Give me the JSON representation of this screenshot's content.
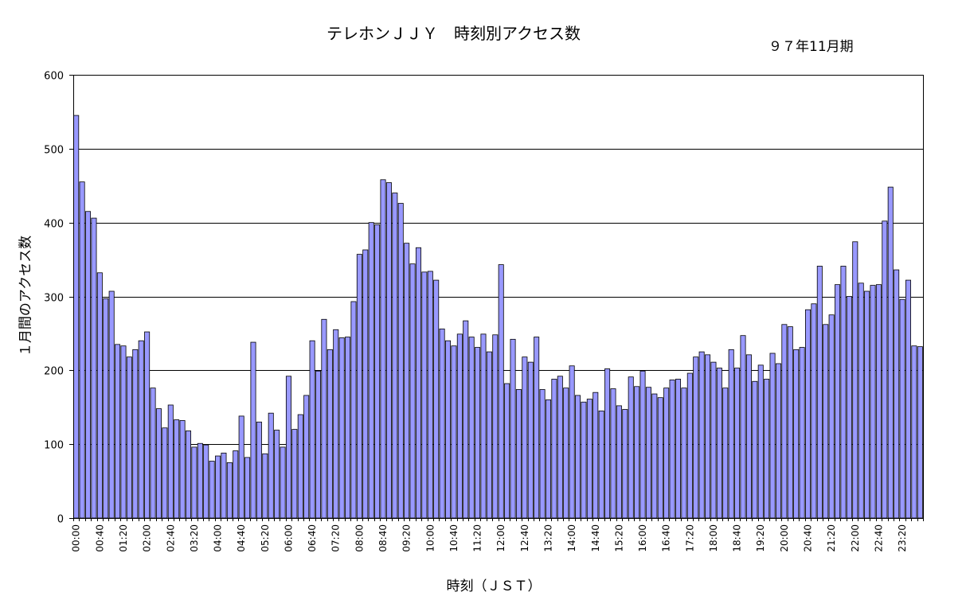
{
  "chart_data": {
    "type": "bar",
    "title": "テレホンＪＪＹ　時刻別アクセス数",
    "subtitle": "９７年11月期",
    "xlabel": "時刻（ＪＳＴ）",
    "ylabel": "１月間のアクセス数",
    "ylim": [
      0,
      600
    ],
    "yticks": [
      0,
      100,
      200,
      300,
      400,
      500,
      600
    ],
    "grid": "horizontal",
    "bar_color": "#9999ff",
    "x_tick_labels": [
      "00:00",
      "00:40",
      "01:20",
      "02:00",
      "02:40",
      "03:20",
      "04:00",
      "04:40",
      "05:20",
      "06:00",
      "06:40",
      "07:20",
      "08:00",
      "08:40",
      "09:20",
      "10:00",
      "10:40",
      "11:20",
      "12:00",
      "12:40",
      "13:20",
      "14:00",
      "14:40",
      "15:20",
      "16:00",
      "16:40",
      "17:20",
      "18:00",
      "18:40",
      "19:20",
      "20:00",
      "20:40",
      "21:20",
      "22:00",
      "22:40",
      "23:20"
    ],
    "values": [
      545,
      455,
      415,
      406,
      332,
      297,
      307,
      235,
      233,
      218,
      228,
      240,
      252,
      176,
      148,
      122,
      153,
      133,
      132,
      118,
      96,
      101,
      99,
      77,
      84,
      88,
      75,
      91,
      138,
      82,
      238,
      130,
      87,
      142,
      119,
      96,
      192,
      120,
      140,
      166,
      240,
      199,
      269,
      228,
      255,
      244,
      245,
      293,
      357,
      363,
      400,
      397,
      458,
      454,
      440,
      426,
      372,
      344,
      366,
      333,
      334,
      322,
      256,
      240,
      233,
      249,
      267,
      245,
      231,
      249,
      225,
      248,
      343,
      182,
      242,
      174,
      218,
      211,
      245,
      174,
      160,
      188,
      192,
      176,
      206,
      166,
      157,
      161,
      170,
      145,
      202,
      175,
      152,
      147,
      191,
      178,
      199,
      177,
      168,
      163,
      176,
      187,
      188,
      176,
      196,
      218,
      225,
      221,
      211,
      203,
      176,
      228,
      203,
      247,
      221,
      185,
      207,
      188,
      223,
      209,
      262,
      259,
      228,
      231,
      282,
      290,
      341,
      262,
      275,
      316,
      341,
      300,
      374,
      318,
      307,
      315,
      316,
      402,
      448,
      336,
      296,
      322,
      233,
      232
    ]
  }
}
